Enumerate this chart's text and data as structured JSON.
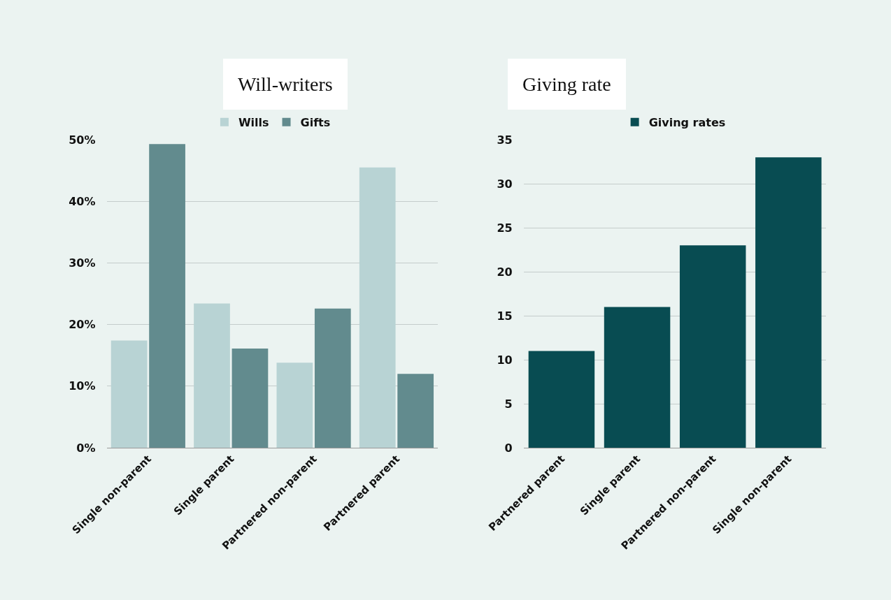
{
  "chart_data": [
    {
      "type": "bar",
      "title": "Will-writers",
      "categories": [
        "Single non-parent",
        "Single parent",
        "Partnered non-parent",
        "Partnered parent"
      ],
      "series": [
        {
          "name": "Wills",
          "color": "#b8d3d4",
          "values": [
            17.4,
            23.4,
            13.8,
            45.5
          ]
        },
        {
          "name": "Gifts",
          "color": "#628b8e",
          "values": [
            49.3,
            16.1,
            22.6,
            12.0
          ]
        }
      ],
      "ylim": [
        0,
        50
      ],
      "yticks": [
        {
          "value": 0,
          "label": "0%"
        },
        {
          "value": 10,
          "label": "10%"
        },
        {
          "value": 20,
          "label": "20%"
        },
        {
          "value": 30,
          "label": "30%"
        },
        {
          "value": 40,
          "label": "40%"
        },
        {
          "value": 50,
          "label": "50%"
        }
      ],
      "grid": "y",
      "legend": "top"
    },
    {
      "type": "bar",
      "title": "Giving rate",
      "categories": [
        "Partnered parent",
        "Single parent",
        "Partnered non-parent",
        "Single non-parent"
      ],
      "series": [
        {
          "name": "Giving rates",
          "color": "#084c52",
          "values": [
            11.0,
            16.0,
            23.0,
            33.0
          ]
        }
      ],
      "ylim": [
        0,
        35
      ],
      "yticks": [
        0,
        5,
        10,
        15,
        20,
        25,
        30,
        35
      ],
      "grid": "y",
      "legend": "top"
    }
  ]
}
